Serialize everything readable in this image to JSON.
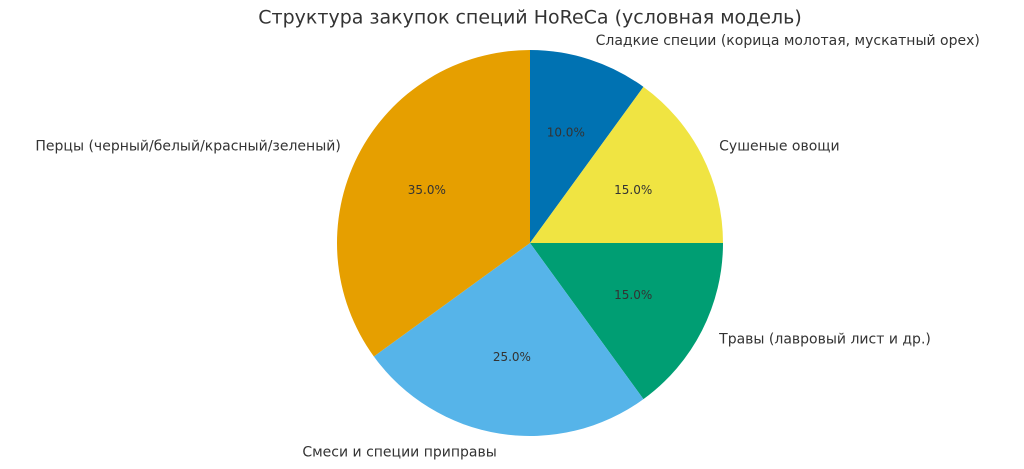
{
  "chart_data": {
    "type": "pie",
    "title": "Структура закупок специй HoReCa (условная модель)",
    "categories": [
      "Сладкие специи (корица молотая, мускатный орех)",
      "Сушеные овощи",
      "Травы (лавровый лист и др.)",
      "Смеси и специи приправы",
      "Перцы (черный/белый/красный/зеленый)"
    ],
    "values": [
      10,
      15,
      15,
      25,
      35
    ],
    "value_labels": [
      "10.0%",
      "15.0%",
      "15.0%",
      "25.0%",
      "35.0%"
    ],
    "colors": [
      "#0072b2",
      "#f0e442",
      "#009e73",
      "#56b4e9",
      "#e69f00"
    ]
  }
}
